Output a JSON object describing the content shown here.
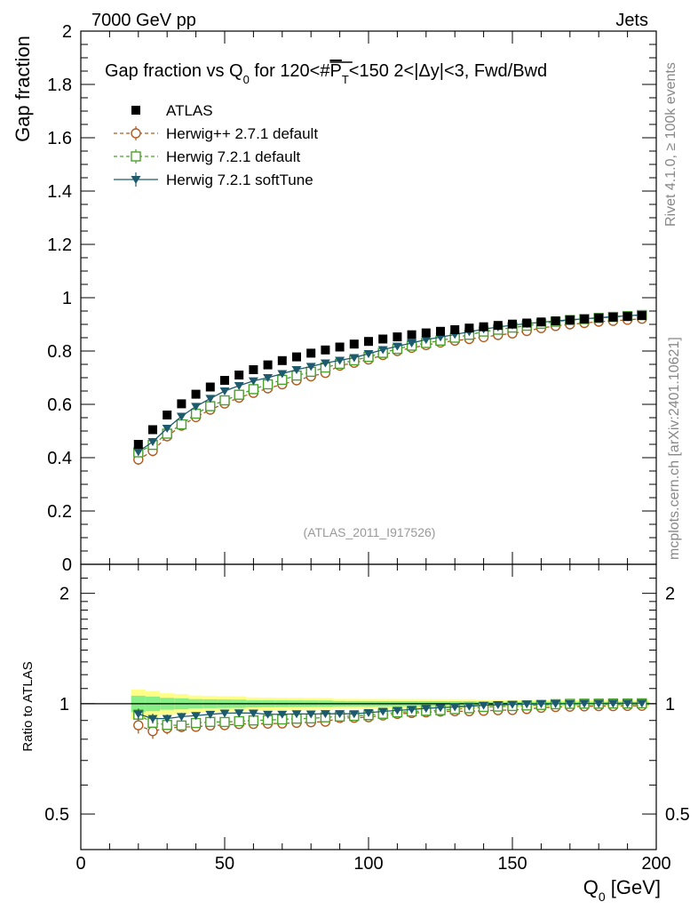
{
  "header": {
    "left": "7000 GeV pp",
    "right": "Jets"
  },
  "side_labels": {
    "rivet": "Rivet 4.1.0, ≥ 100k events",
    "mcplots": "mcplots.cern.ch [arXiv:2401.10621]"
  },
  "chart_data": {
    "type": "scatter",
    "title": "Gap fraction vs Q0 for 120<#PT<150  2<|Δy|<3, Fwd/Bwd",
    "title_parts": {
      "a": "Gap fraction vs Q",
      "a_sub": "0",
      "b": " for 120<#",
      "p": "P",
      "p_sub": "T",
      "c": "<150  2<|Δy|<3, Fwd/Bwd"
    },
    "analysis_id": "(ATLAS_2011_I917526)",
    "xlabel": "Q",
    "xlabel_sub": "0",
    "xlabel_unit": " [GeV]",
    "xlim": [
      0,
      200
    ],
    "x_ticks": [
      0,
      50,
      100,
      150,
      200
    ],
    "x_tick_labels": [
      "0",
      "50",
      "100",
      "150",
      "200"
    ],
    "main": {
      "ylabel": "Gap fraction",
      "ylim": [
        0,
        2
      ],
      "y_ticks": [
        0.2,
        0.4,
        0.6,
        0.8,
        1,
        1.2,
        1.4,
        1.6,
        1.8,
        2
      ],
      "y_tick_labels": [
        "0.2",
        "0.4",
        "0.6",
        "0.8",
        "1",
        "1.2",
        "1.4",
        "1.6",
        "1.8",
        "2"
      ],
      "y_zero_label": "0"
    },
    "ratio": {
      "ylabel": "Ratio to ATLAS",
      "ylim": [
        0.4,
        2.4
      ],
      "scale": "log",
      "y_ticks": [
        0.5,
        1,
        2
      ],
      "y_tick_labels": [
        "0.5",
        "1",
        "2"
      ]
    },
    "x": [
      20,
      25,
      30,
      35,
      40,
      45,
      50,
      55,
      60,
      65,
      70,
      75,
      80,
      85,
      90,
      95,
      100,
      105,
      110,
      115,
      120,
      125,
      130,
      135,
      140,
      145,
      150,
      155,
      160,
      165,
      170,
      175,
      180,
      185,
      190,
      195
    ],
    "series": [
      {
        "name": "ATLAS",
        "color": "#000000",
        "marker": "filled-square",
        "values": [
          0.45,
          0.505,
          0.56,
          0.602,
          0.638,
          0.665,
          0.69,
          0.71,
          0.73,
          0.748,
          0.764,
          0.778,
          0.792,
          0.804,
          0.815,
          0.826,
          0.836,
          0.845,
          0.853,
          0.861,
          0.868,
          0.874,
          0.88,
          0.886,
          0.891,
          0.896,
          0.901,
          0.905,
          0.909,
          0.913,
          0.917,
          0.92,
          0.924,
          0.927,
          0.93,
          0.933
        ],
        "errors": [
          0.01,
          0.01,
          0.009,
          0.009,
          0.008,
          0.008,
          0.008,
          0.008,
          0.007,
          0.007,
          0.007,
          0.007,
          0.007,
          0.007,
          0.006,
          0.006,
          0.006,
          0.006,
          0.006,
          0.006,
          0.006,
          0.006,
          0.006,
          0.006,
          0.005,
          0.005,
          0.005,
          0.005,
          0.005,
          0.005,
          0.005,
          0.005,
          0.005,
          0.005,
          0.005,
          0.005
        ]
      },
      {
        "name": "Herwig++ 2.7.1 default",
        "color": "#b05a1e",
        "marker": "open-circle",
        "values": [
          0.393,
          0.425,
          0.48,
          0.52,
          0.552,
          0.58,
          0.603,
          0.625,
          0.643,
          0.66,
          0.675,
          0.69,
          0.705,
          0.718,
          0.745,
          0.756,
          0.768,
          0.785,
          0.8,
          0.812,
          0.822,
          0.832,
          0.839,
          0.845,
          0.852,
          0.86,
          0.866,
          0.875,
          0.886,
          0.894,
          0.9,
          0.905,
          0.91,
          0.913,
          0.917,
          0.921
        ],
        "errors": [
          0.02,
          0.02,
          0.018,
          0.017,
          0.016,
          0.015,
          0.015,
          0.014,
          0.014,
          0.013,
          0.013,
          0.013,
          0.012,
          0.012,
          0.012,
          0.011,
          0.011,
          0.011,
          0.011,
          0.01,
          0.01,
          0.01,
          0.01,
          0.01,
          0.01,
          0.01,
          0.009,
          0.009,
          0.009,
          0.009,
          0.009,
          0.009,
          0.009,
          0.009,
          0.009,
          0.009
        ]
      },
      {
        "name": "Herwig 7.2.1 default",
        "color": "#4aa02c",
        "marker": "open-square",
        "values": [
          0.42,
          0.448,
          0.49,
          0.525,
          0.565,
          0.593,
          0.615,
          0.636,
          0.657,
          0.675,
          0.692,
          0.708,
          0.722,
          0.738,
          0.752,
          0.765,
          0.778,
          0.793,
          0.808,
          0.82,
          0.83,
          0.839,
          0.85,
          0.861,
          0.873,
          0.88,
          0.888,
          0.895,
          0.902,
          0.91,
          0.916,
          0.92,
          0.924,
          0.928,
          0.931,
          0.935
        ],
        "errors": [
          0.015,
          0.015,
          0.014,
          0.013,
          0.013,
          0.012,
          0.012,
          0.011,
          0.011,
          0.011,
          0.01,
          0.01,
          0.01,
          0.01,
          0.009,
          0.009,
          0.009,
          0.009,
          0.009,
          0.009,
          0.008,
          0.008,
          0.008,
          0.008,
          0.008,
          0.008,
          0.008,
          0.008,
          0.008,
          0.008,
          0.008,
          0.008,
          0.008,
          0.008,
          0.008,
          0.008
        ]
      },
      {
        "name": "Herwig 7.2.1 softTune",
        "color": "#1e5a6e",
        "marker": "filled-triangle-down",
        "values": [
          0.422,
          0.46,
          0.51,
          0.555,
          0.592,
          0.622,
          0.65,
          0.67,
          0.688,
          0.7,
          0.715,
          0.73,
          0.742,
          0.755,
          0.765,
          0.775,
          0.79,
          0.805,
          0.818,
          0.83,
          0.843,
          0.852,
          0.862,
          0.872,
          0.882,
          0.89,
          0.897,
          0.903,
          0.908,
          0.913,
          0.917,
          0.921,
          0.925,
          0.929,
          0.932,
          0.936
        ],
        "errors": [
          0.014,
          0.014,
          0.013,
          0.013,
          0.012,
          0.012,
          0.011,
          0.011,
          0.011,
          0.01,
          0.01,
          0.01,
          0.01,
          0.009,
          0.009,
          0.009,
          0.009,
          0.009,
          0.008,
          0.008,
          0.008,
          0.008,
          0.008,
          0.008,
          0.008,
          0.008,
          0.008,
          0.008,
          0.008,
          0.007,
          0.007,
          0.007,
          0.007,
          0.007,
          0.007,
          0.007
        ]
      }
    ]
  }
}
